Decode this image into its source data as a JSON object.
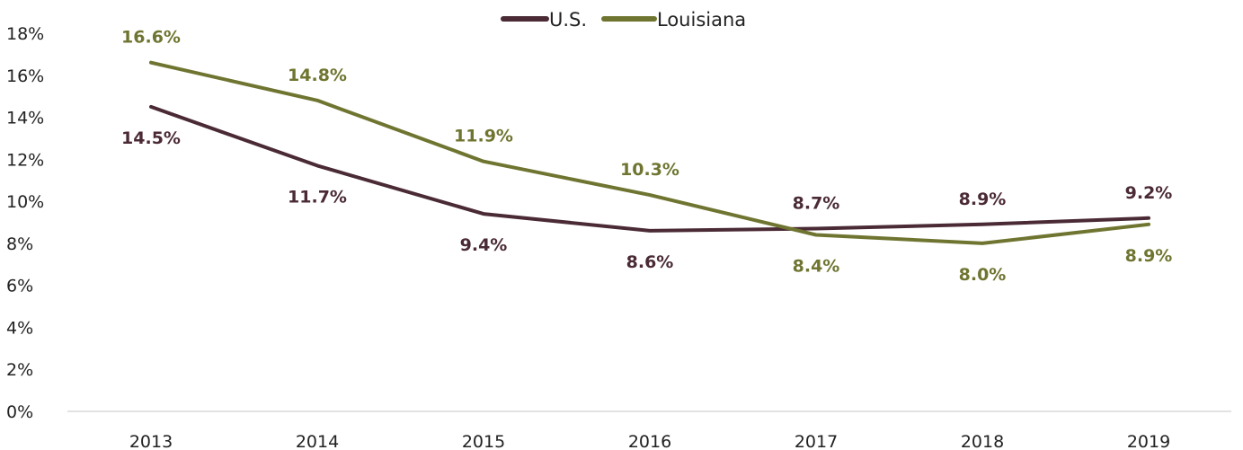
{
  "chart_data": {
    "type": "line",
    "title": "",
    "xlabel": "",
    "ylabel": "",
    "x": [
      "2013",
      "2014",
      "2015",
      "2016",
      "2017",
      "2018",
      "2019"
    ],
    "ylim": [
      0,
      18
    ],
    "yticks": [
      "0%",
      "2%",
      "4%",
      "6%",
      "8%",
      "10%",
      "12%",
      "14%",
      "16%",
      "18%"
    ],
    "grid": false,
    "legend": "top-center",
    "series": [
      {
        "name": "U.S.",
        "color": "#4a2a35",
        "values": [
          14.5,
          11.7,
          9.4,
          8.6,
          8.7,
          8.9,
          9.2
        ],
        "labels": [
          "14.5%",
          "11.7%",
          "9.4%",
          "8.6%",
          "8.7%",
          "8.9%",
          "9.2%"
        ],
        "label_positions": [
          "below",
          "below",
          "below",
          "below",
          "above",
          "above",
          "above"
        ]
      },
      {
        "name": "Louisiana",
        "color": "#6f7530",
        "values": [
          16.6,
          14.8,
          11.9,
          10.3,
          8.4,
          8.0,
          8.9
        ],
        "labels": [
          "16.6%",
          "14.8%",
          "11.9%",
          "10.3%",
          "8.4%",
          "8.0%",
          "8.9%"
        ],
        "label_positions": [
          "above",
          "above",
          "above",
          "above",
          "below",
          "below",
          "below"
        ]
      }
    ]
  }
}
